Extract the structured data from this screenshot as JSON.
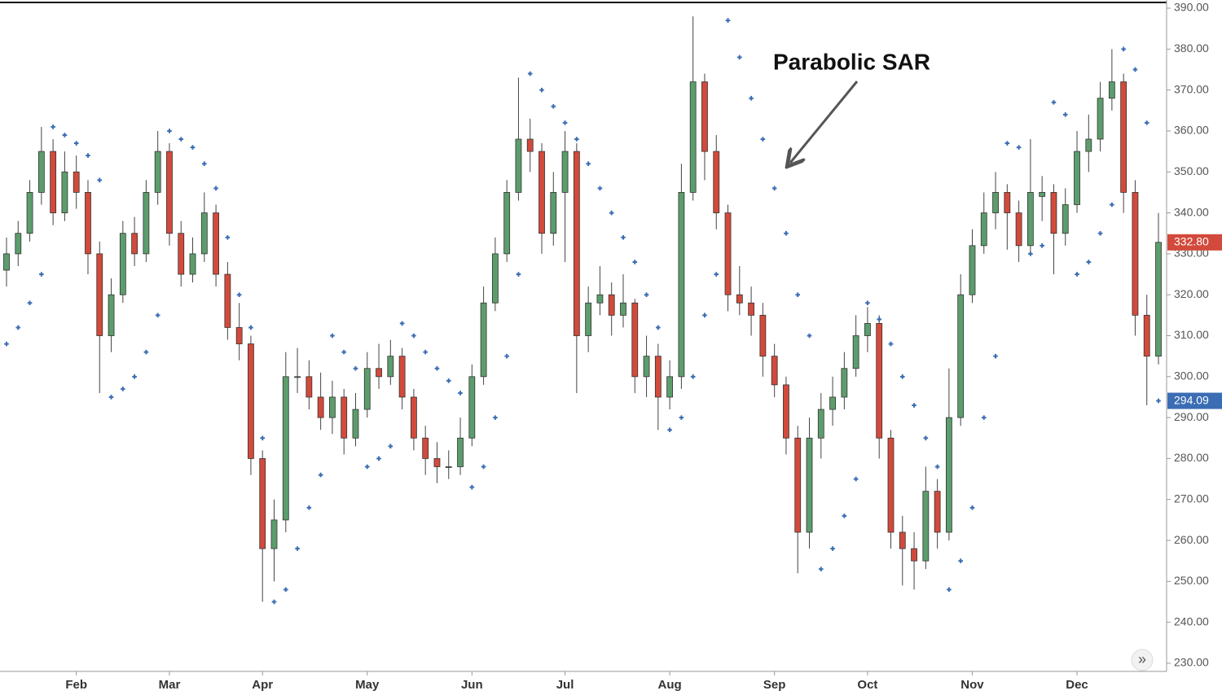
{
  "chart_data": {
    "type": "candlestick",
    "annotation": "Parabolic SAR",
    "scroll_button": "»",
    "categories": [
      null,
      null,
      null,
      null,
      null,
      null,
      "Feb",
      null,
      null,
      null,
      null,
      null,
      null,
      null,
      "Mar",
      null,
      null,
      null,
      null,
      null,
      null,
      null,
      "Apr",
      null,
      null,
      null,
      null,
      null,
      null,
      null,
      null,
      "May",
      null,
      null,
      null,
      null,
      null,
      null,
      null,
      null,
      "Jun",
      null,
      null,
      null,
      null,
      null,
      null,
      null,
      "Jul",
      null,
      null,
      null,
      null,
      null,
      null,
      null,
      null,
      "Aug",
      null,
      null,
      null,
      null,
      null,
      null,
      null,
      null,
      "Sep",
      null,
      null,
      null,
      null,
      null,
      null,
      null,
      "Oct",
      null,
      null,
      null,
      null,
      null,
      null,
      null,
      null,
      "Nov",
      null,
      null,
      null,
      null,
      null,
      null,
      null,
      null,
      "Dec",
      null,
      null,
      null,
      null,
      null,
      null,
      null
    ],
    "candles": [
      [
        326,
        334,
        322,
        330
      ],
      [
        330,
        338,
        327,
        335
      ],
      [
        335,
        348,
        333,
        345
      ],
      [
        345,
        361,
        342,
        355
      ],
      [
        355,
        358,
        337,
        340
      ],
      [
        340,
        355,
        338,
        350
      ],
      [
        350,
        354,
        341,
        345
      ],
      [
        345,
        348,
        325,
        330
      ],
      [
        330,
        333,
        296,
        310
      ],
      [
        310,
        324,
        306,
        320
      ],
      [
        320,
        338,
        318,
        335
      ],
      [
        335,
        339,
        327,
        330
      ],
      [
        330,
        348,
        328,
        345
      ],
      [
        345,
        360,
        342,
        355
      ],
      [
        355,
        357,
        332,
        335
      ],
      [
        335,
        338,
        322,
        325
      ],
      [
        325,
        334,
        323,
        330
      ],
      [
        330,
        345,
        328,
        340
      ],
      [
        340,
        342,
        322,
        325
      ],
      [
        325,
        328,
        309,
        312
      ],
      [
        312,
        318,
        304,
        308
      ],
      [
        308,
        310,
        276,
        280
      ],
      [
        280,
        282,
        245,
        258
      ],
      [
        258,
        270,
        250,
        265
      ],
      [
        265,
        306,
        262,
        300
      ],
      [
        300,
        307,
        296,
        300
      ],
      [
        300,
        304,
        292,
        295
      ],
      [
        295,
        301,
        287,
        290
      ],
      [
        290,
        299,
        286,
        295
      ],
      [
        295,
        297,
        281,
        285
      ],
      [
        285,
        296,
        283,
        292
      ],
      [
        292,
        306,
        290,
        302
      ],
      [
        302,
        308,
        297,
        300
      ],
      [
        300,
        309,
        298,
        305
      ],
      [
        305,
        307,
        292,
        295
      ],
      [
        295,
        297,
        282,
        285
      ],
      [
        285,
        288,
        276,
        280
      ],
      [
        280,
        284,
        274,
        278
      ],
      [
        278,
        282,
        275,
        278
      ],
      [
        278,
        290,
        276,
        285
      ],
      [
        285,
        303,
        283,
        300
      ],
      [
        300,
        322,
        298,
        318
      ],
      [
        318,
        334,
        316,
        330
      ],
      [
        330,
        348,
        328,
        345
      ],
      [
        345,
        373,
        343,
        358
      ],
      [
        358,
        363,
        350,
        355
      ],
      [
        355,
        357,
        330,
        335
      ],
      [
        335,
        350,
        332,
        345
      ],
      [
        345,
        360,
        328,
        355
      ],
      [
        355,
        357,
        296,
        310
      ],
      [
        310,
        322,
        306,
        318
      ],
      [
        318,
        327,
        315,
        320
      ],
      [
        320,
        323,
        310,
        315
      ],
      [
        315,
        325,
        312,
        318
      ],
      [
        318,
        319,
        296,
        300
      ],
      [
        300,
        310,
        295,
        305
      ],
      [
        305,
        308,
        287,
        295
      ],
      [
        295,
        304,
        292,
        300
      ],
      [
        300,
        352,
        297,
        345
      ],
      [
        345,
        388,
        343,
        372
      ],
      [
        372,
        374,
        348,
        355
      ],
      [
        355,
        359,
        336,
        340
      ],
      [
        340,
        342,
        316,
        320
      ],
      [
        320,
        327,
        315,
        318
      ],
      [
        318,
        322,
        310,
        315
      ],
      [
        315,
        318,
        300,
        305
      ],
      [
        305,
        308,
        295,
        298
      ],
      [
        298,
        300,
        281,
        285
      ],
      [
        285,
        288,
        252,
        262
      ],
      [
        262,
        290,
        258,
        285
      ],
      [
        285,
        296,
        280,
        292
      ],
      [
        292,
        300,
        288,
        295
      ],
      [
        295,
        306,
        292,
        302
      ],
      [
        302,
        315,
        300,
        310
      ],
      [
        310,
        317,
        306,
        313
      ],
      [
        313,
        315,
        280,
        285
      ],
      [
        285,
        287,
        258,
        262
      ],
      [
        262,
        266,
        249,
        258
      ],
      [
        258,
        262,
        248,
        255
      ],
      [
        255,
        278,
        253,
        272
      ],
      [
        272,
        275,
        258,
        262
      ],
      [
        262,
        302,
        260,
        290
      ],
      [
        290,
        325,
        288,
        320
      ],
      [
        320,
        336,
        318,
        332
      ],
      [
        332,
        345,
        330,
        340
      ],
      [
        340,
        350,
        336,
        345
      ],
      [
        345,
        347,
        331,
        340
      ],
      [
        340,
        343,
        328,
        332
      ],
      [
        332,
        358,
        330,
        345
      ],
      [
        344,
        349,
        338,
        345
      ],
      [
        345,
        347,
        325,
        335
      ],
      [
        335,
        346,
        332,
        342
      ],
      [
        342,
        360,
        340,
        355
      ],
      [
        355,
        364,
        350,
        358
      ],
      [
        358,
        372,
        355,
        368
      ],
      [
        368,
        380,
        365,
        372
      ],
      [
        372,
        374,
        340,
        345
      ],
      [
        345,
        348,
        310,
        315
      ],
      [
        315,
        320,
        293,
        305
      ],
      [
        305,
        340,
        303,
        332.8
      ]
    ],
    "sar": [
      308,
      312,
      318,
      325,
      361,
      359,
      357,
      354,
      348,
      295,
      297,
      300,
      306,
      315,
      360,
      358,
      356,
      352,
      346,
      334,
      320,
      312,
      285,
      245,
      248,
      258,
      268,
      276,
      310,
      306,
      302,
      278,
      280,
      283,
      313,
      310,
      306,
      302,
      299,
      296,
      273,
      278,
      290,
      305,
      325,
      374,
      370,
      366,
      362,
      358,
      352,
      346,
      340,
      334,
      328,
      320,
      312,
      287,
      290,
      300,
      315,
      325,
      387,
      378,
      368,
      358,
      346,
      335,
      320,
      310,
      253,
      258,
      266,
      275,
      318,
      314,
      308,
      300,
      293,
      285,
      278,
      248,
      255,
      268,
      290,
      305,
      357,
      356,
      330,
      332,
      367,
      364,
      325,
      328,
      335,
      342,
      380,
      375,
      362,
      294.09
    ],
    "up_color": "#5c9d6c",
    "down_color": "#d24a3b",
    "sar_color": "#3b6db4",
    "ylim": [
      230,
      390
    ],
    "yticks": [
      {
        "value": 230,
        "label": "230.00"
      },
      {
        "value": 240,
        "label": "240.00"
      },
      {
        "value": 250,
        "label": "250.00"
      },
      {
        "value": 260,
        "label": "260.00"
      },
      {
        "value": 270,
        "label": "270.00"
      },
      {
        "value": 280,
        "label": "280.00"
      },
      {
        "value": 290,
        "label": "290.00"
      },
      {
        "value": 300,
        "label": "300.00"
      },
      {
        "value": 310,
        "label": "310.00"
      },
      {
        "value": 320,
        "label": "320.00"
      },
      {
        "value": 330,
        "label": "330.00"
      },
      {
        "value": 340,
        "label": "340.00"
      },
      {
        "value": 350,
        "label": "350.00"
      },
      {
        "value": 360,
        "label": "360.00"
      },
      {
        "value": 370,
        "label": "370.00"
      },
      {
        "value": 380,
        "label": "380.00"
      },
      {
        "value": 390,
        "label": "390.00"
      }
    ],
    "price_labels": [
      {
        "value": 332.8,
        "label": "332.80",
        "color": "#d24a3b"
      },
      {
        "value": 294.09,
        "label": "294.09",
        "color": "#3b6db4"
      }
    ]
  }
}
